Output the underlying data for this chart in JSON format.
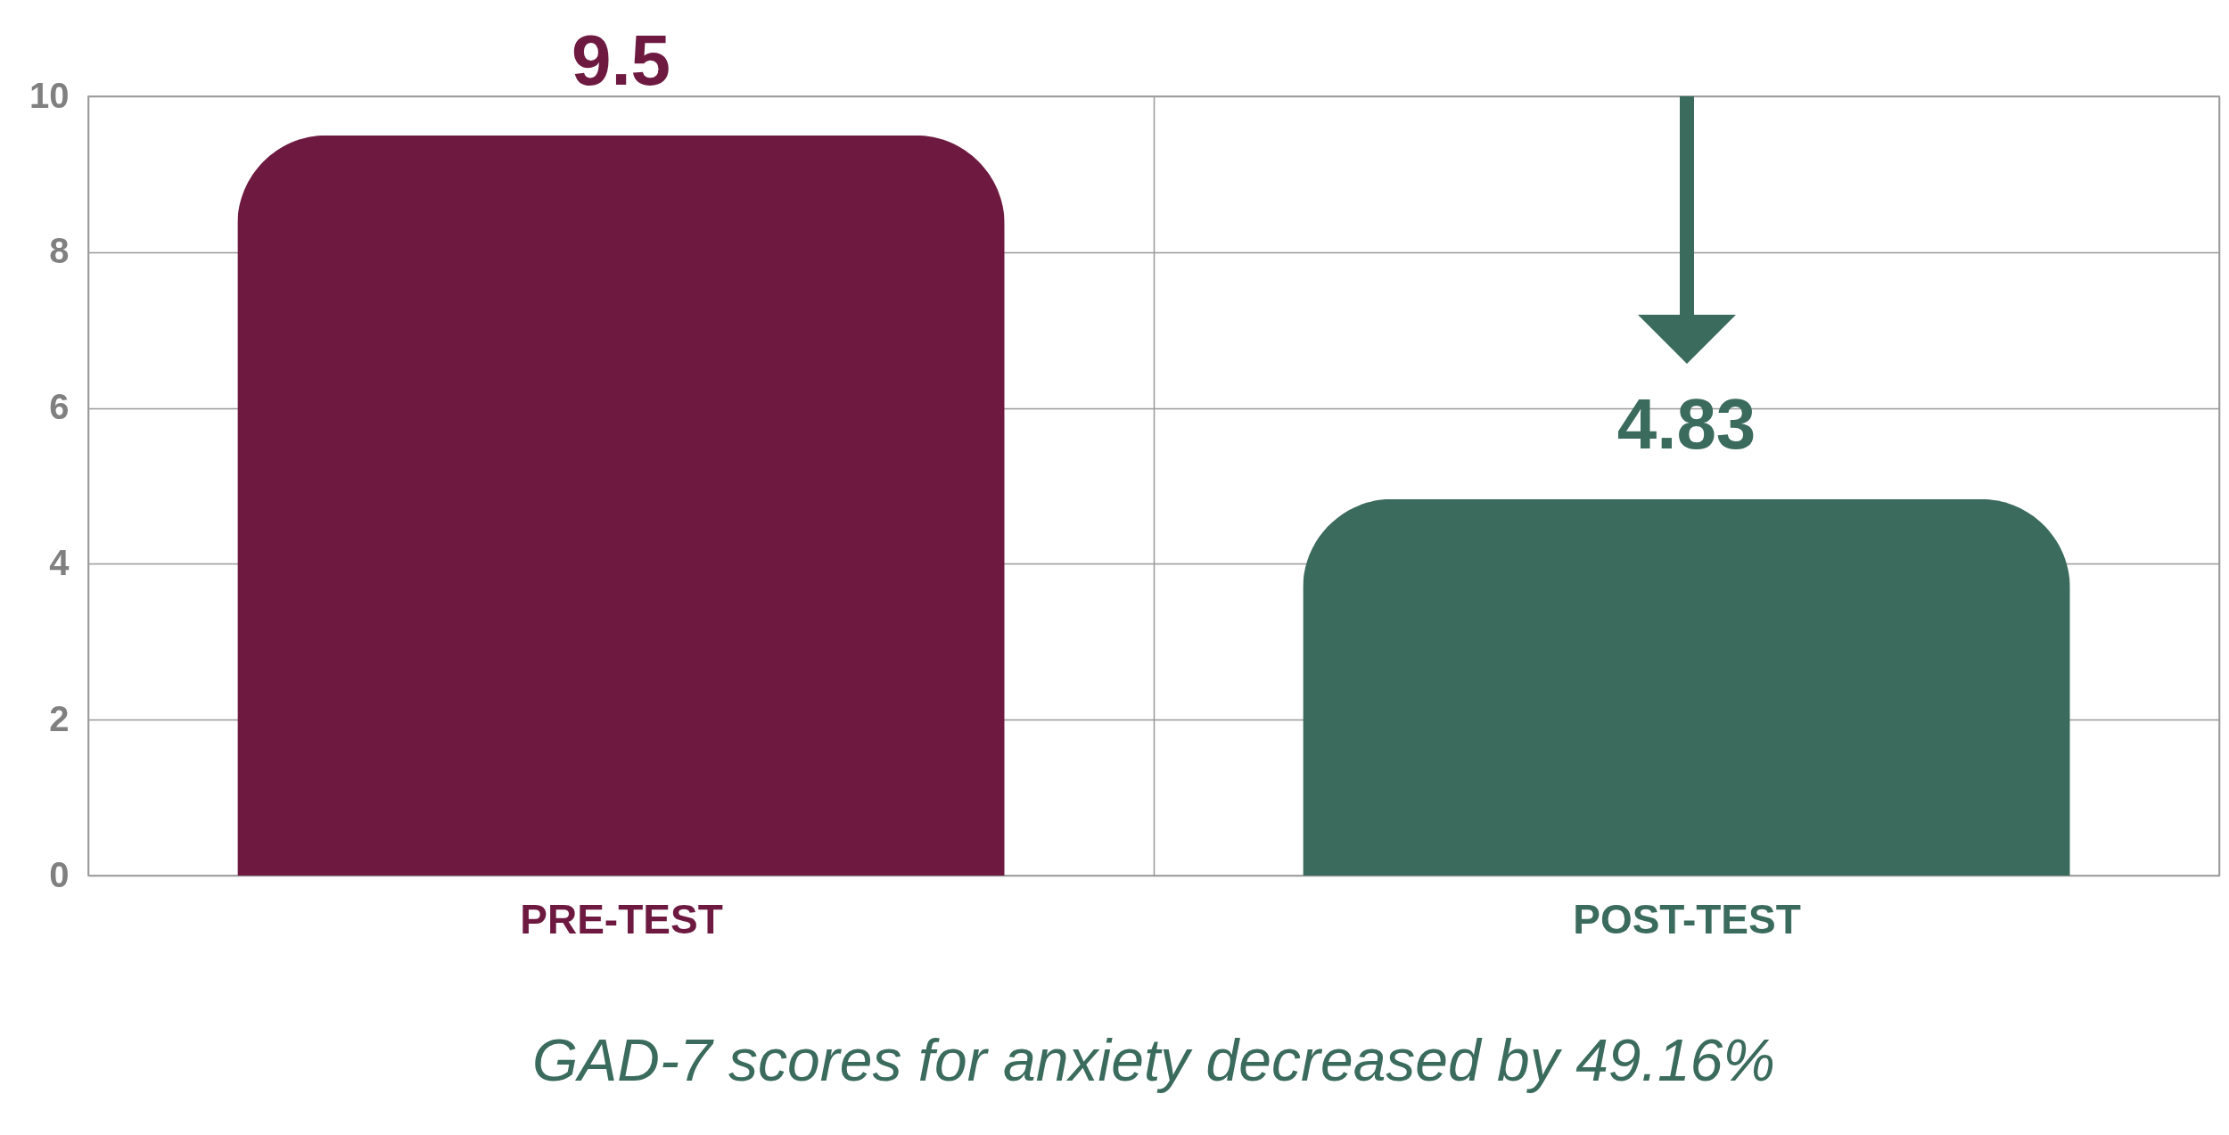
{
  "chart_data": {
    "type": "bar",
    "title": "GAD-7 scores for anxiety decreased by 49.16%",
    "categories": [
      "PRE-TEST",
      "POST-TEST"
    ],
    "values": [
      9.5,
      4.83
    ],
    "colors": [
      "#6e1a40",
      "#3b6b5c"
    ],
    "ylim": [
      0,
      10
    ],
    "yticks": [
      0,
      2,
      4,
      6,
      8,
      10
    ],
    "grid": true,
    "data_labels": true
  }
}
